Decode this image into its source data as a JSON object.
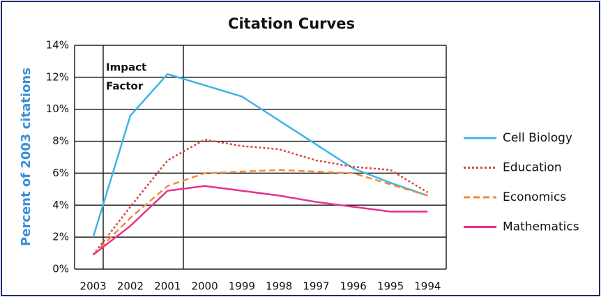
{
  "chart_data": {
    "type": "line",
    "title": "Citation Curves",
    "y_label": "Percent of 2003 citations",
    "annotation": [
      "Impact",
      "Factor"
    ],
    "categories": [
      "2003",
      "2002",
      "2001",
      "2000",
      "1999",
      "1998",
      "1997",
      "1996",
      "1995",
      "1994"
    ],
    "series": [
      {
        "name": "Cell Biology",
        "color": "#3db4e8",
        "dash": "none",
        "values": [
          2.0,
          9.6,
          12.2,
          11.5,
          10.8,
          9.3,
          7.8,
          6.3,
          5.4,
          4.6
        ]
      },
      {
        "name": "Education",
        "color": "#d8463a",
        "dash": "3 3",
        "values": [
          0.9,
          3.9,
          6.8,
          8.1,
          7.7,
          7.5,
          6.8,
          6.4,
          6.2,
          4.8
        ]
      },
      {
        "name": "Economics",
        "color": "#f08a3c",
        "dash": "9 5",
        "values": [
          0.9,
          3.2,
          5.2,
          6.0,
          6.1,
          6.2,
          6.1,
          6.0,
          5.3,
          4.6
        ]
      },
      {
        "name": "Mathematics",
        "color": "#e8308c",
        "dash": "none",
        "values": [
          0.9,
          2.7,
          4.9,
          5.2,
          4.9,
          4.6,
          4.2,
          3.9,
          3.6,
          3.6
        ]
      }
    ],
    "ylim": [
      0,
      14
    ],
    "yticks": [
      {
        "value": 0,
        "label": "0%"
      },
      {
        "value": 2,
        "label": "2%"
      },
      {
        "value": 4,
        "label": "4%"
      },
      {
        "value": 6,
        "label": "6%"
      },
      {
        "value": 8,
        "label": "8%"
      },
      {
        "value": 10,
        "label": "10%"
      },
      {
        "value": 12,
        "label": "12%"
      },
      {
        "value": 14,
        "label": "14%"
      }
    ],
    "grid": true,
    "legend": "right"
  }
}
